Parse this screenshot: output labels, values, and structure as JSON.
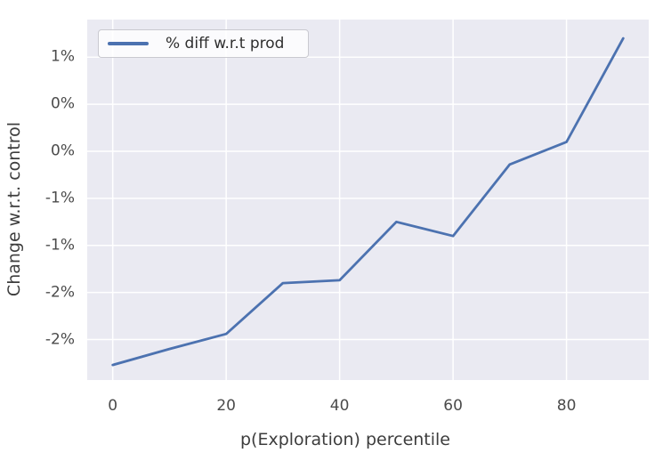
{
  "chart_data": {
    "type": "line",
    "title": "",
    "xlabel": "p(Exploration) percentile",
    "ylabel": "Change w.r.t. control",
    "x": [
      0,
      10,
      20,
      30,
      40,
      50,
      60,
      70,
      80,
      90
    ],
    "series": [
      {
        "name": "% diff w.r.t prod",
        "color": "#4c72b0",
        "values_percent": [
          -2.27,
          -2.1,
          -1.94,
          -1.4,
          -1.37,
          -0.75,
          -0.9,
          -0.14,
          0.1,
          1.2
        ]
      }
    ],
    "xlim": [
      -4.5,
      94.5
    ],
    "ylim": [
      -2.43,
      1.4
    ],
    "xticks": {
      "values": [
        0,
        20,
        40,
        60,
        80
      ],
      "labels": [
        "0",
        "20",
        "40",
        "60",
        "80"
      ]
    },
    "yticks": {
      "values": [
        1.0,
        0.5,
        0.0,
        -0.5,
        -1.0,
        -1.5,
        -2.0
      ],
      "labels": [
        "1%",
        "0%",
        "0%",
        "-1%",
        "-1%",
        "-2%",
        "-2%"
      ]
    },
    "grid": true,
    "legend_position": "upper-left",
    "colors": {
      "plot_background": "#eaeaf2",
      "grid": "#ffffff",
      "line": "#4c72b0",
      "tick_text": "#4b4b4b",
      "label_text": "#3d3d3d"
    }
  }
}
